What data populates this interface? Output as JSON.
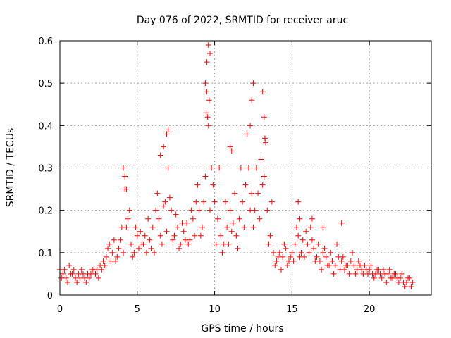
{
  "chart_data": {
    "type": "scatter",
    "title": "Day 076 of 2022, SRMTID for receiver aruc",
    "xlabel": "GPS time / hours",
    "ylabel": "SRMTID / TECUs",
    "xlim": [
      0,
      24
    ],
    "ylim": [
      0,
      0.6
    ],
    "xticks": [
      0,
      5,
      10,
      15,
      20
    ],
    "xtick_labels": [
      "0",
      "5",
      "10",
      "15",
      "20"
    ],
    "yticks": [
      0,
      0.1,
      0.2,
      0.3,
      0.4,
      0.5,
      0.6
    ],
    "ytick_labels": [
      "0",
      "0.1",
      "0.2",
      "0.3",
      "0.4",
      "0.5",
      "0.6"
    ],
    "grid": true,
    "marker": "+",
    "series": [
      {
        "name": "SRMTID",
        "color": "#ff0000",
        "x": [
          0.0,
          0.2,
          0.4,
          0.6,
          0.8,
          1.0,
          1.2,
          1.4,
          1.6,
          1.8,
          2.0,
          2.2,
          2.4,
          2.6,
          2.8,
          3.0,
          3.2,
          3.4,
          3.6,
          3.8,
          4.0,
          4.2,
          4.4,
          4.6,
          4.8,
          5.0,
          5.2,
          5.4,
          5.6,
          5.8,
          6.0,
          6.2,
          6.4,
          6.6,
          6.8,
          7.0,
          7.2,
          7.4,
          7.6,
          7.8,
          8.0,
          8.2,
          8.4,
          8.6,
          8.8,
          9.0,
          9.2,
          9.4,
          9.6,
          9.8,
          10.0,
          10.2,
          10.4,
          10.6,
          10.8,
          11.0,
          11.2,
          11.4,
          11.6,
          11.8,
          12.0,
          12.2,
          12.4,
          12.6,
          12.8,
          13.0,
          13.2,
          13.4,
          13.6,
          13.8,
          14.0,
          14.2,
          14.4,
          14.6,
          14.8,
          15.0,
          15.2,
          15.4,
          15.6,
          15.8,
          16.0,
          16.2,
          16.4,
          16.6,
          16.8,
          17.0,
          17.2,
          17.4,
          17.6,
          17.8,
          18.0,
          18.2,
          18.4,
          18.6,
          18.8,
          19.0,
          19.2,
          19.4,
          19.6,
          19.8,
          20.0,
          20.2,
          20.4,
          20.6,
          20.8,
          21.0,
          21.2,
          21.4,
          21.6,
          21.8,
          22.0,
          22.2,
          22.4,
          22.6,
          22.8,
          0.1,
          0.3,
          0.5,
          0.7,
          0.9,
          1.1,
          1.3,
          1.5,
          1.7,
          1.9,
          2.1,
          2.3,
          2.5,
          2.7,
          2.9,
          3.1,
          3.3,
          3.5,
          3.7,
          3.9,
          4.1,
          4.3,
          4.5,
          4.7,
          4.9,
          5.1,
          5.3,
          5.5,
          5.7,
          5.9,
          6.1,
          6.3,
          6.5,
          6.7,
          6.9,
          7.1,
          7.3,
          7.5,
          7.7,
          7.9,
          8.1,
          8.3,
          8.5,
          8.7,
          8.9,
          9.1,
          9.3,
          9.5,
          9.7,
          9.9,
          10.1,
          10.3,
          10.5,
          10.7,
          10.9,
          11.1,
          11.3,
          11.5,
          11.7,
          11.9,
          12.1,
          12.3,
          12.5,
          12.7,
          12.9,
          13.1,
          13.3,
          13.5,
          13.7,
          13.9,
          14.1,
          14.3,
          14.5,
          14.7,
          14.9,
          15.1,
          15.3,
          15.5,
          15.7,
          15.9,
          16.1,
          16.3,
          16.5,
          16.7,
          16.9,
          17.1,
          17.3,
          17.5,
          17.7,
          17.9,
          18.1,
          18.3,
          18.5,
          18.7,
          18.9,
          19.1,
          19.3,
          19.5,
          19.7,
          19.9,
          20.1,
          20.3,
          20.5,
          20.7,
          20.9,
          21.1,
          21.3,
          21.5,
          21.7,
          21.9,
          22.1,
          22.3,
          22.5,
          22.7,
          4.1,
          4.2,
          4.3,
          6.5,
          6.7,
          6.9,
          7.0,
          9.4,
          9.5,
          9.6,
          9.7,
          9.65,
          9.55,
          9.45,
          11.0,
          11.1,
          12.3,
          12.4,
          12.5,
          13.1,
          13.2,
          13.25,
          15.4,
          15.5,
          16.3,
          17.0,
          18.2
        ],
        "y": [
          0.06,
          0.05,
          0.04,
          0.07,
          0.05,
          0.04,
          0.05,
          0.06,
          0.04,
          0.05,
          0.05,
          0.06,
          0.06,
          0.07,
          0.08,
          0.09,
          0.12,
          0.1,
          0.08,
          0.11,
          0.16,
          0.25,
          0.18,
          0.12,
          0.1,
          0.14,
          0.15,
          0.12,
          0.1,
          0.13,
          0.16,
          0.2,
          0.18,
          0.12,
          0.22,
          0.3,
          0.2,
          0.14,
          0.16,
          0.12,
          0.15,
          0.17,
          0.13,
          0.18,
          0.22,
          0.2,
          0.16,
          0.28,
          0.4,
          0.3,
          0.22,
          0.18,
          0.14,
          0.12,
          0.16,
          0.2,
          0.17,
          0.14,
          0.18,
          0.22,
          0.26,
          0.3,
          0.24,
          0.2,
          0.24,
          0.32,
          0.28,
          0.2,
          0.14,
          0.1,
          0.08,
          0.1,
          0.09,
          0.11,
          0.08,
          0.1,
          0.12,
          0.14,
          0.1,
          0.09,
          0.12,
          0.16,
          0.11,
          0.09,
          0.08,
          0.1,
          0.09,
          0.07,
          0.08,
          0.07,
          0.09,
          0.08,
          0.06,
          0.07,
          0.08,
          0.07,
          0.06,
          0.07,
          0.05,
          0.06,
          0.06,
          0.05,
          0.05,
          0.06,
          0.04,
          0.05,
          0.05,
          0.04,
          0.05,
          0.04,
          0.04,
          0.03,
          0.03,
          0.04,
          0.03,
          0.04,
          0.06,
          0.03,
          0.05,
          0.06,
          0.03,
          0.04,
          0.05,
          0.03,
          0.04,
          0.06,
          0.05,
          0.04,
          0.06,
          0.07,
          0.11,
          0.08,
          0.13,
          0.09,
          0.13,
          0.1,
          0.16,
          0.2,
          0.09,
          0.16,
          0.11,
          0.12,
          0.14,
          0.18,
          0.11,
          0.1,
          0.24,
          0.14,
          0.21,
          0.15,
          0.23,
          0.13,
          0.19,
          0.11,
          0.17,
          0.13,
          0.12,
          0.2,
          0.14,
          0.26,
          0.14,
          0.22,
          0.48,
          0.2,
          0.26,
          0.12,
          0.3,
          0.1,
          0.22,
          0.12,
          0.15,
          0.24,
          0.11,
          0.3,
          0.16,
          0.38,
          0.2,
          0.16,
          0.3,
          0.18,
          0.26,
          0.36,
          0.12,
          0.22,
          0.07,
          0.09,
          0.06,
          0.12,
          0.07,
          0.09,
          0.08,
          0.16,
          0.09,
          0.13,
          0.15,
          0.1,
          0.13,
          0.08,
          0.12,
          0.06,
          0.11,
          0.07,
          0.1,
          0.05,
          0.12,
          0.06,
          0.09,
          0.07,
          0.05,
          0.1,
          0.05,
          0.08,
          0.06,
          0.07,
          0.05,
          0.07,
          0.04,
          0.06,
          0.05,
          0.06,
          0.03,
          0.06,
          0.04,
          0.05,
          0.03,
          0.05,
          0.02,
          0.04,
          0.02,
          0.3,
          0.28,
          0.25,
          0.33,
          0.35,
          0.38,
          0.39,
          0.5,
          0.55,
          0.59,
          0.57,
          0.46,
          0.42,
          0.43,
          0.35,
          0.34,
          0.4,
          0.46,
          0.5,
          0.48,
          0.42,
          0.37,
          0.22,
          0.18,
          0.18,
          0.16,
          0.17
        ]
      }
    ]
  }
}
